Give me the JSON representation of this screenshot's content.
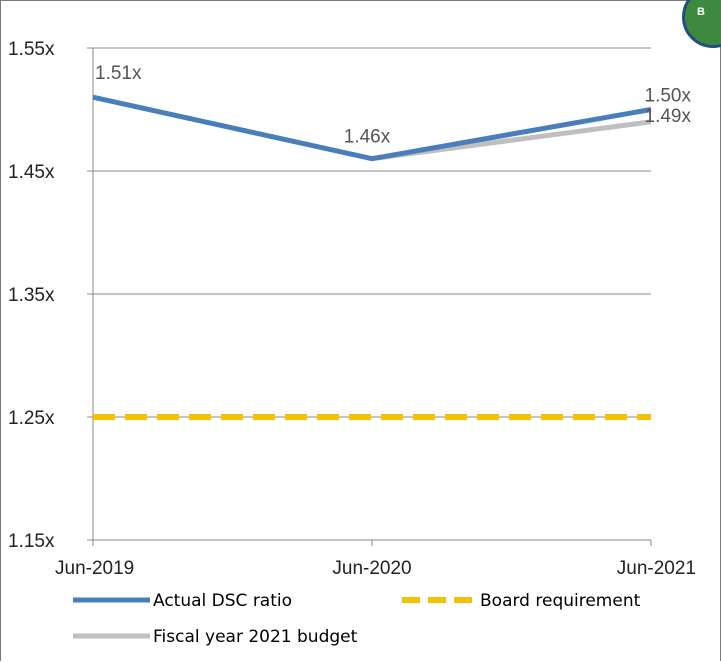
{
  "badge": {
    "text": "B"
  },
  "chart_data": {
    "type": "line",
    "categories": [
      "Jun-2019",
      "Jun-2020",
      "Jun-2021"
    ],
    "ylim": [
      1.15,
      1.55
    ],
    "yticks": [
      "1.55x",
      "1.45x",
      "1.35x",
      "1.25x",
      "1.15x"
    ],
    "ytick_values": [
      1.55,
      1.45,
      1.35,
      1.25,
      1.15
    ],
    "grid": true,
    "legend_position": "bottom",
    "series": [
      {
        "name": "Actual DSC ratio",
        "color": "#4a7ebb",
        "style": "solid",
        "values": [
          1.51,
          1.46,
          1.5
        ],
        "labels": [
          "1.51x",
          "1.46x",
          "1.50x"
        ]
      },
      {
        "name": "Board requirement",
        "color": "#f5c000",
        "style": "dashed",
        "values": [
          1.25,
          1.25,
          1.25
        ],
        "labels": [
          "",
          "",
          ""
        ]
      },
      {
        "name": "Fiscal year 2021 budget",
        "color": "#bfbfbf",
        "style": "solid",
        "values": [
          null,
          1.46,
          1.49
        ],
        "labels": [
          "",
          "",
          "1.49x"
        ]
      }
    ]
  }
}
